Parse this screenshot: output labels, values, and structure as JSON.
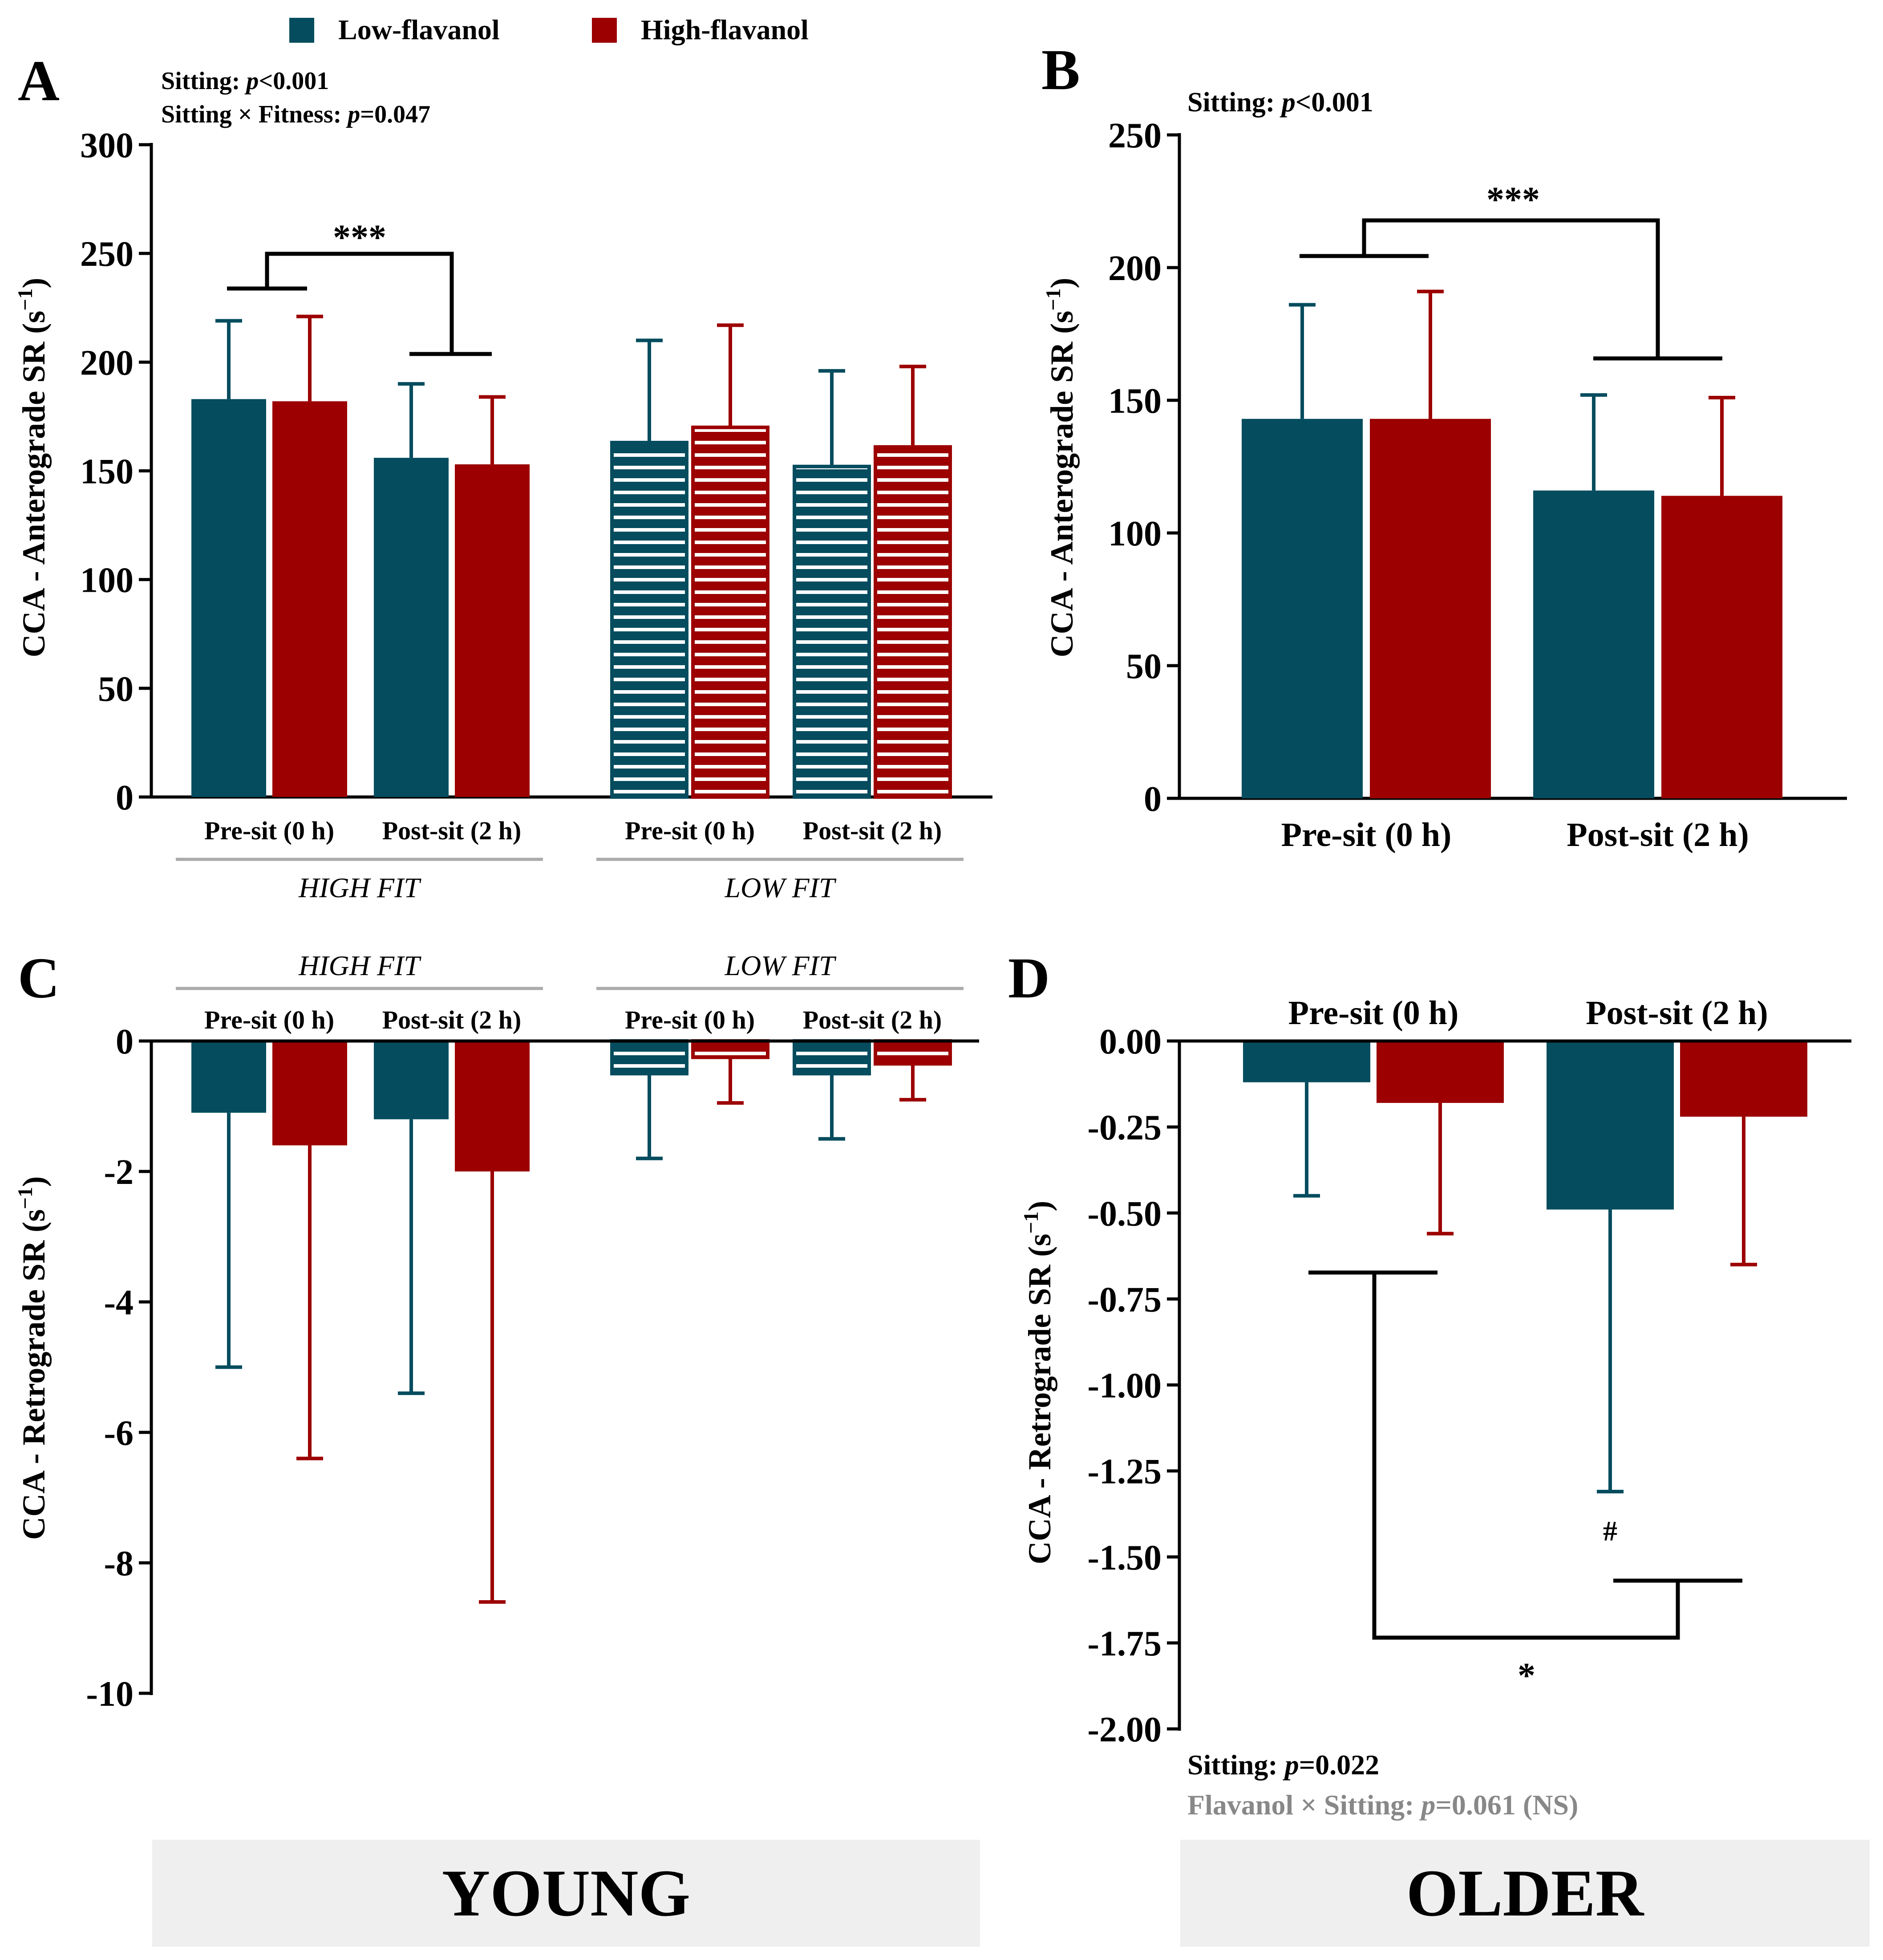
{
  "colors": {
    "low": "#044c5e",
    "high": "#9c0000",
    "axis": "#000000",
    "groupline": "#aaaaaa",
    "note_gray": "#888888"
  },
  "legend": [
    {
      "key": "low",
      "label": "Low-flavanol"
    },
    {
      "key": "high",
      "label": "High-flavanol"
    }
  ],
  "group_labels": {
    "young": "YOUNG",
    "older": "OLDER"
  },
  "chart_data": [
    {
      "panel": "A",
      "type": "bar",
      "ylabel_main": "CCA - Anterograde SR (s",
      "ylabel_sup": "−1",
      "ylabel_end": ")",
      "ylim": [
        0,
        300
      ],
      "yticks": [
        0,
        50,
        100,
        150,
        200,
        250,
        300
      ],
      "stats_lines": [
        [
          {
            "t": "Sitting: "
          },
          {
            "t": "p",
            "i": true
          },
          {
            "t": "<0.001"
          }
        ],
        [
          {
            "t": "Sitting × Fitness: "
          },
          {
            "t": "p",
            "i": true
          },
          {
            "t": "=0.047"
          }
        ]
      ],
      "groups": [
        "HIGH FIT",
        "LOW FIT"
      ],
      "categories": [
        "Pre-sit (0 h)",
        "Post-sit (2 h)",
        "Pre-sit (0 h)",
        "Post-sit (2 h)"
      ],
      "series": [
        {
          "name": "Low-flavanol",
          "key": "low",
          "values": [
            183,
            156,
            163,
            152
          ],
          "error": [
            36,
            34,
            47,
            44
          ]
        },
        {
          "name": "High-flavanol",
          "key": "high",
          "values": [
            182,
            153,
            170,
            161
          ],
          "error": [
            39,
            31,
            47,
            37
          ]
        }
      ],
      "significance": "***"
    },
    {
      "panel": "B",
      "type": "bar",
      "ylabel_main": "CCA - Anterograde SR (s",
      "ylabel_sup": "−1",
      "ylabel_end": ")",
      "ylim": [
        0,
        250
      ],
      "yticks": [
        0,
        50,
        100,
        150,
        200,
        250
      ],
      "stats_lines": [
        [
          {
            "t": "Sitting: "
          },
          {
            "t": "p",
            "i": true
          },
          {
            "t": "<0.001"
          }
        ]
      ],
      "categories": [
        "Pre-sit (0 h)",
        "Post-sit (2 h)"
      ],
      "series": [
        {
          "name": "Low-flavanol",
          "key": "low",
          "values": [
            143,
            116
          ],
          "error": [
            43,
            36
          ]
        },
        {
          "name": "High-flavanol",
          "key": "high",
          "values": [
            143,
            114
          ],
          "error": [
            48,
            37
          ]
        }
      ],
      "significance": "***"
    },
    {
      "panel": "C",
      "type": "bar",
      "ylabel_main": "CCA - Retrograde SR (s",
      "ylabel_sup": "−1",
      "ylabel_end": ")",
      "ylim": [
        -10,
        0
      ],
      "yticks": [
        0,
        -2,
        -4,
        -6,
        -8,
        -10
      ],
      "groups": [
        "HIGH FIT",
        "LOW FIT"
      ],
      "categories": [
        "Pre-sit (0 h)",
        "Post-sit (2 h)",
        "Pre-sit (0 h)",
        "Post-sit (2 h)"
      ],
      "series": [
        {
          "name": "Low-flavanol",
          "key": "low",
          "values": [
            -1.1,
            -1.2,
            -0.5,
            -0.5
          ],
          "error": [
            3.9,
            4.2,
            1.3,
            1.0
          ]
        },
        {
          "name": "High-flavanol",
          "key": "high",
          "values": [
            -1.6,
            -2.0,
            -0.25,
            -0.35
          ],
          "error": [
            4.8,
            6.6,
            0.7,
            0.55
          ]
        }
      ]
    },
    {
      "panel": "D",
      "type": "bar",
      "ylabel_main": "CCA - Retrograde SR (s",
      "ylabel_sup": "−1",
      "ylabel_end": ")",
      "ylim": [
        -2.0,
        0.0
      ],
      "yticks": [
        0.0,
        -0.25,
        -0.5,
        -0.75,
        -1.0,
        -1.25,
        -1.5,
        -1.75,
        -2.0
      ],
      "ytick_labels": [
        "0.00",
        "-0.25",
        "-0.50",
        "-0.75",
        "-1.00",
        "-1.25",
        "-1.50",
        "-1.75",
        "-2.00"
      ],
      "stats_lines": [
        [
          {
            "t": "Sitting: "
          },
          {
            "t": "p",
            "i": true
          },
          {
            "t": "=0.022"
          }
        ],
        [
          {
            "t": "Flavanol × Sitting: ",
            "g": true
          },
          {
            "t": "p",
            "i": true,
            "g": true
          },
          {
            "t": "=0.061 (NS)",
            "g": true
          }
        ]
      ],
      "categories": [
        "Pre-sit (0 h)",
        "Post-sit (2 h)"
      ],
      "series": [
        {
          "name": "Low-flavanol",
          "key": "low",
          "values": [
            -0.12,
            -0.49
          ],
          "error": [
            0.33,
            0.82
          ]
        },
        {
          "name": "High-flavanol",
          "key": "high",
          "values": [
            -0.18,
            -0.22
          ],
          "error": [
            0.38,
            0.43
          ]
        }
      ],
      "annotations": {
        "hash": "#",
        "significance": "*"
      }
    }
  ]
}
